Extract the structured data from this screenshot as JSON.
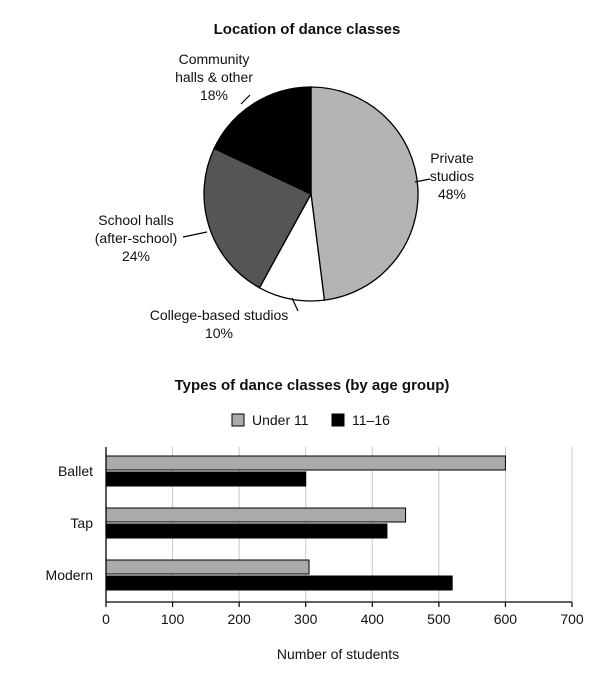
{
  "chart_data": [
    {
      "type": "pie",
      "title": "Location of dance classes",
      "slices": [
        {
          "label_lines": [
            "Private",
            "studios"
          ],
          "value_label": "48%",
          "value": 48,
          "color": "#b4b4b4"
        },
        {
          "label_lines": [
            "College-based studios"
          ],
          "value_label": "10%",
          "value": 10,
          "color": "#ffffff"
        },
        {
          "label_lines": [
            "School halls",
            "(after-school)"
          ],
          "value_label": "24%",
          "value": 24,
          "color": "#555555"
        },
        {
          "label_lines": [
            "Community",
            "halls & other"
          ],
          "value_label": "18%",
          "value": 18,
          "color": "#000000"
        }
      ]
    },
    {
      "type": "bar",
      "orientation": "horizontal",
      "title": "Types of dance classes (by age group)",
      "categories": [
        "Ballet",
        "Tap",
        "Modern"
      ],
      "series": [
        {
          "name": "Under 11",
          "values": [
            600,
            450,
            305
          ],
          "color": "#aaaaaa"
        },
        {
          "name": "11–16",
          "values": [
            300,
            422,
            520
          ],
          "color": "#000000"
        }
      ],
      "xlabel": "Number of students",
      "xlim": [
        0,
        700
      ],
      "xticks": [
        0,
        100,
        200,
        300,
        400,
        500,
        600,
        700
      ],
      "grid": true,
      "legend_position": "top-center"
    }
  ]
}
